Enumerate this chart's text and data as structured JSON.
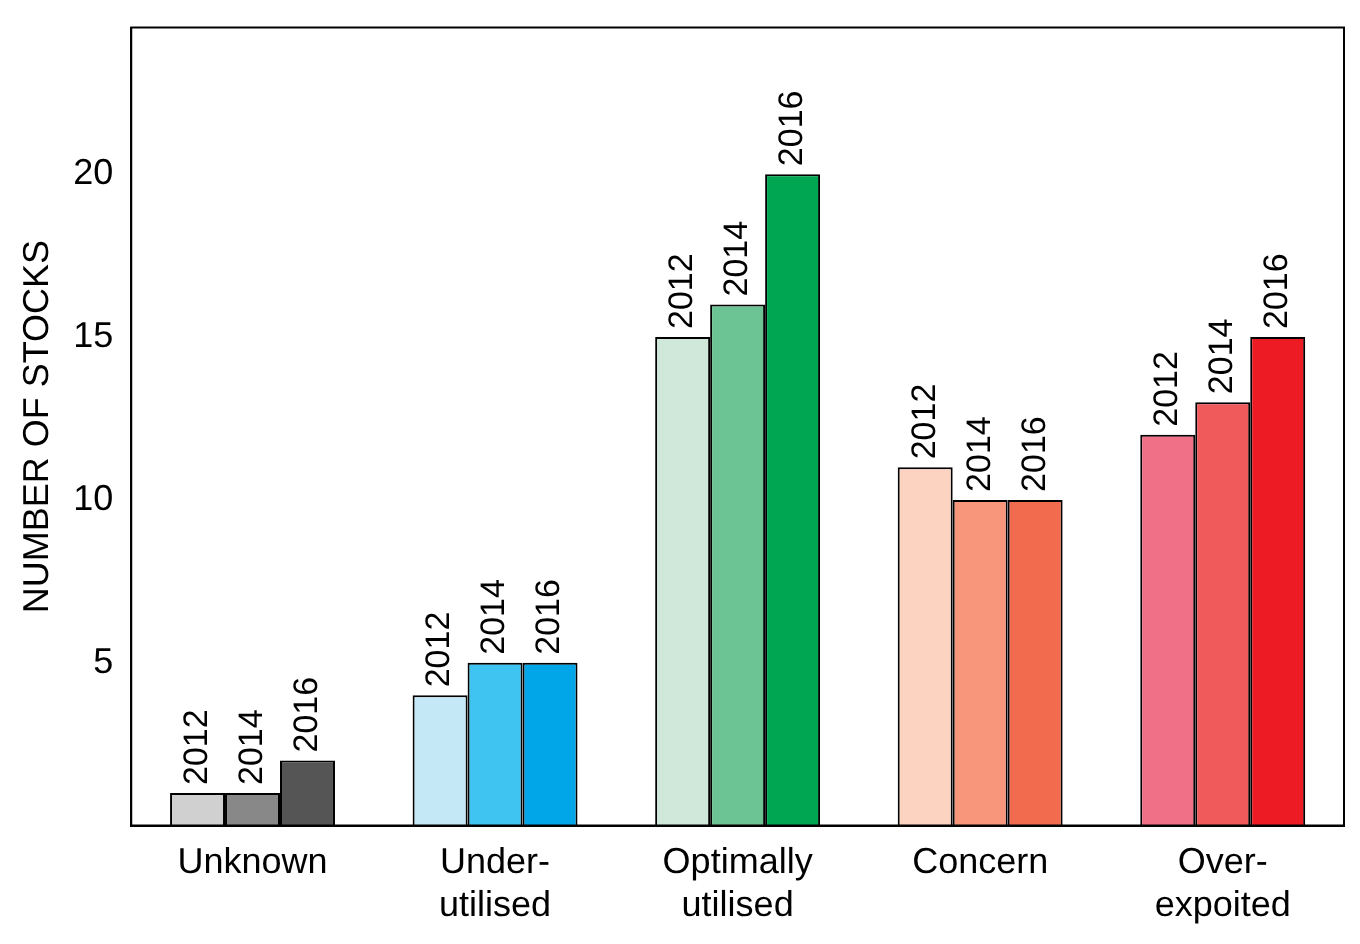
{
  "chart_data": {
    "type": "bar",
    "ylabel": "NUMBER OF STOCKS",
    "categories": [
      "Unknown",
      "Under-\nutilised",
      "Optimally\nutilised",
      "Concern",
      "Over-\nexpoited"
    ],
    "ylim": [
      0,
      24.5
    ],
    "yticks": [
      5,
      10,
      15,
      20
    ],
    "series": [
      {
        "name": "2012",
        "colors": [
          "#d0d0d0",
          "#c5e8f7",
          "#cfe8da",
          "#fbd3c0",
          "#f07088"
        ],
        "values": [
          1,
          4,
          15,
          11,
          12
        ]
      },
      {
        "name": "2014",
        "colors": [
          "#888888",
          "#3fc3f0",
          "#6cc495",
          "#f7967a",
          "#f05a5a"
        ],
        "values": [
          1,
          5,
          16,
          10,
          13
        ]
      },
      {
        "name": "2016",
        "colors": [
          "#555555",
          "#00a6e8",
          "#00a651",
          "#f26b4f",
          "#ed1c24"
        ],
        "values": [
          2,
          5,
          20,
          10,
          15
        ]
      }
    ]
  }
}
